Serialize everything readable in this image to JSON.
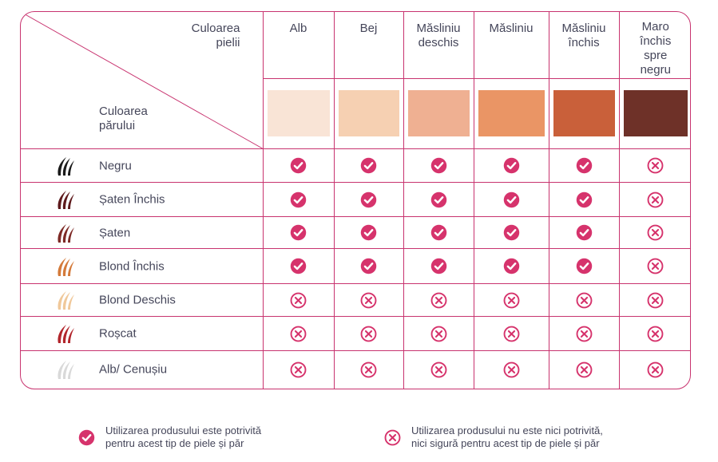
{
  "header": {
    "skin_label_1": "Culoarea",
    "skin_label_2": "pielii",
    "hair_label_1": "Culoarea",
    "hair_label_2": "părului"
  },
  "skin_tones": [
    {
      "name_1": "Alb",
      "name_2": "",
      "name_3": "",
      "name_4": "",
      "color": "#f9e4d6"
    },
    {
      "name_1": "Bej",
      "name_2": "",
      "name_3": "",
      "name_4": "",
      "color": "#f6d0b2"
    },
    {
      "name_1": "Măsliniu",
      "name_2": "deschis",
      "name_3": "",
      "name_4": "",
      "color": "#efb092"
    },
    {
      "name_1": "Măsliniu",
      "name_2": "",
      "name_3": "",
      "name_4": "",
      "color": "#ea9565"
    },
    {
      "name_1": "Măsliniu",
      "name_2": "închis",
      "name_3": "",
      "name_4": "",
      "color": "#c9603a"
    },
    {
      "name_1": "Maro",
      "name_2": "închis",
      "name_3": "spre",
      "name_4": "negru",
      "color": "#6e3128"
    }
  ],
  "hair_rows": [
    {
      "label": "Negru",
      "color": "#1a1a1a",
      "marks": [
        "ok",
        "ok",
        "ok",
        "ok",
        "ok",
        "no"
      ]
    },
    {
      "label": "Șaten Închis",
      "color": "#5e1a1c",
      "marks": [
        "ok",
        "ok",
        "ok",
        "ok",
        "ok",
        "no"
      ]
    },
    {
      "label": "Șaten",
      "color": "#7e2a26",
      "marks": [
        "ok",
        "ok",
        "ok",
        "ok",
        "ok",
        "no"
      ]
    },
    {
      "label": "Blond Închis",
      "color": "#d47a3a",
      "marks": [
        "ok",
        "ok",
        "ok",
        "ok",
        "ok",
        "no"
      ]
    },
    {
      "label": "Blond Deschis",
      "color": "#f0c89a",
      "marks": [
        "no",
        "no",
        "no",
        "no",
        "no",
        "no"
      ]
    },
    {
      "label": "Roșcat",
      "color": "#b2262c",
      "marks": [
        "no",
        "no",
        "no",
        "no",
        "no",
        "no"
      ]
    },
    {
      "label": "Alb/ Cenușiu",
      "color": "#d9d9d9",
      "marks": [
        "no",
        "no",
        "no",
        "no",
        "no",
        "no"
      ]
    }
  ],
  "legend": {
    "suitable_1": "Utilizarea produsului este potrivită",
    "suitable_2": "pentru acest tip de piele și păr",
    "unsuitable_1": "Utilizarea produsului nu este nici potrivită,",
    "unsuitable_2": "nici sigură pentru acest tip de piele și păr"
  },
  "colors": {
    "accent": "#c8336f",
    "check": "#d6336c",
    "text": "#45465a"
  },
  "icons": {
    "suitable": "check-circle-icon",
    "unsuitable": "x-circle-icon",
    "hair": "hair-strand-icon"
  }
}
